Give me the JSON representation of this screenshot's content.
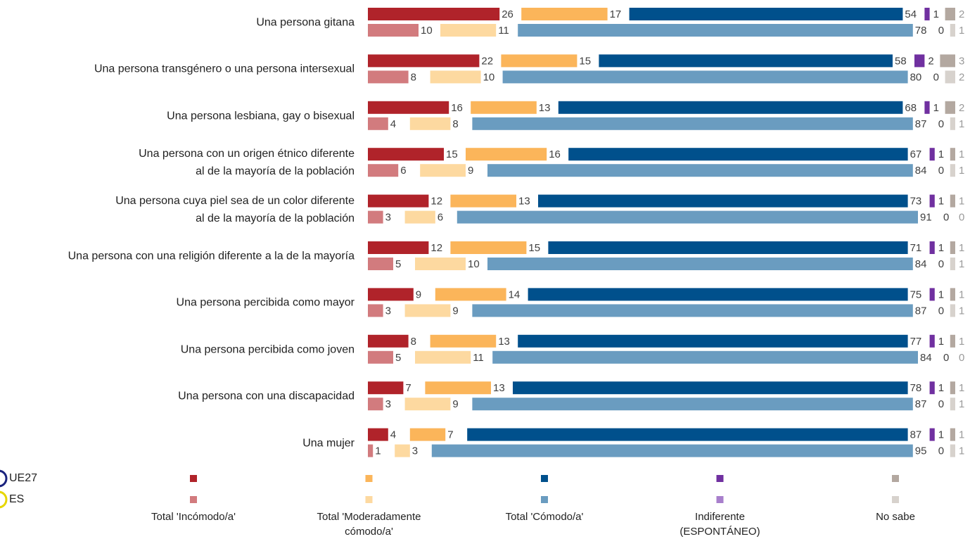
{
  "chart_data": {
    "type": "stacked-bar",
    "categories": [
      "Una persona gitana",
      "Una persona transgénero o una persona intersexual",
      "Una persona lesbiana, gay o bisexual",
      "Una persona con un origen étnico diferente\nal de la mayoría de la población",
      "Una persona cuya piel sea de un color diferente\nal de la mayoría de la población",
      "Una persona con una religión diferente a la de la mayoría",
      "Una persona percibida como mayor",
      "Una persona percibida como joven",
      "Una persona con una discapacidad",
      "Una mujer"
    ],
    "groups": [
      "UE27",
      "ES"
    ],
    "series": [
      {
        "name": "Total 'Incómodo/a'",
        "colors": [
          "#b0232a",
          "#d27b7e"
        ],
        "values": [
          [
            26,
            22,
            16,
            15,
            12,
            12,
            9,
            8,
            7,
            4
          ],
          [
            10,
            8,
            4,
            6,
            3,
            5,
            3,
            5,
            3,
            1
          ]
        ]
      },
      {
        "name": "Total 'Moderadamente\ncómodo/a'",
        "colors": [
          "#fbb55a",
          "#fdd9a0"
        ],
        "values": [
          [
            17,
            15,
            13,
            16,
            13,
            15,
            14,
            13,
            13,
            7
          ],
          [
            11,
            10,
            8,
            9,
            6,
            10,
            9,
            11,
            9,
            3
          ]
        ]
      },
      {
        "name": "Total 'Cómodo/a'",
        "colors": [
          "#00508c",
          "#6a9cc0"
        ],
        "values": [
          [
            54,
            58,
            68,
            67,
            73,
            71,
            75,
            77,
            78,
            87
          ],
          [
            78,
            80,
            87,
            84,
            91,
            84,
            87,
            84,
            87,
            95
          ]
        ]
      },
      {
        "name": "Indiferente\n(ESPONTÁNEO)",
        "colors": [
          "#7030a0",
          "#a87fcc"
        ],
        "values": [
          [
            1,
            2,
            1,
            1,
            1,
            1,
            1,
            1,
            1,
            1
          ],
          [
            0,
            0,
            0,
            0,
            0,
            0,
            0,
            0,
            0,
            0
          ]
        ]
      },
      {
        "name": "No sabe",
        "colors": [
          "#b3a8a0",
          "#d7d2cd"
        ],
        "values": [
          [
            2,
            3,
            2,
            1,
            1,
            1,
            1,
            1,
            1,
            1
          ],
          [
            1,
            2,
            1,
            1,
            0,
            1,
            1,
            0,
            1,
            1
          ]
        ]
      }
    ]
  }
}
